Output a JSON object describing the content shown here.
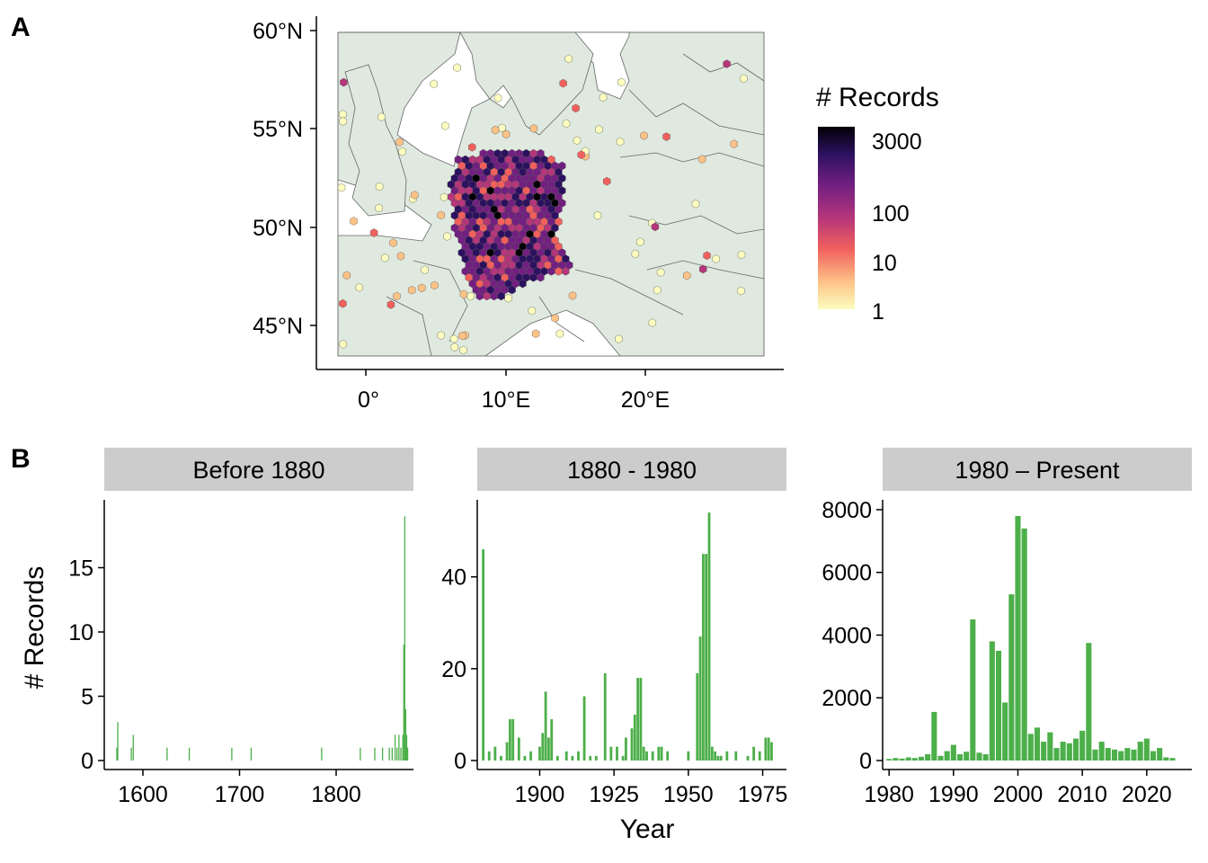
{
  "panels": {
    "a": "A",
    "b": "B"
  },
  "map": {
    "lat_ticks": [
      "45°N",
      "50°N",
      "55°N",
      "60°N"
    ],
    "lon_ticks": [
      "0°",
      "10°E",
      "20°E"
    ],
    "legend_title": "# Records",
    "legend_ticks": [
      "1",
      "10",
      "100",
      "3000"
    ],
    "land_color": "#dfe9df",
    "scale_colors": [
      "#fcfdbf",
      "#fec287",
      "#f1605d",
      "#b5367a",
      "#721f81",
      "#2d1160",
      "#000004"
    ]
  },
  "chart_data": [
    {
      "type": "bar",
      "title": "Before 1880",
      "xlabel": "",
      "ylabel": "# Records",
      "xlim": [
        1560,
        1880
      ],
      "ylim": [
        0,
        20
      ],
      "x_ticks": [
        1600,
        1700,
        1800
      ],
      "y_ticks": [
        0,
        5,
        10,
        15
      ],
      "color": "#4daf4a",
      "x": [
        1573,
        1574,
        1588,
        1590,
        1625,
        1648,
        1692,
        1712,
        1785,
        1825,
        1840,
        1848,
        1855,
        1858,
        1861,
        1863,
        1865,
        1867,
        1869,
        1870,
        1871,
        1872,
        1873,
        1874
      ],
      "values": [
        1,
        3,
        1,
        2,
        1,
        1,
        1,
        1,
        1,
        1,
        1,
        1,
        1,
        1,
        2,
        1,
        2,
        1,
        2,
        9,
        19,
        4,
        2,
        1
      ]
    },
    {
      "type": "bar",
      "title": "1880 - 1980",
      "xlabel": "Year",
      "ylabel": "",
      "xlim": [
        1879,
        1983
      ],
      "ylim": [
        0,
        56
      ],
      "x_ticks": [
        1900,
        1925,
        1950,
        1975
      ],
      "y_ticks": [
        0,
        20,
        40
      ],
      "color": "#4daf4a",
      "x": [
        1881,
        1883,
        1885,
        1887,
        1889,
        1890,
        1891,
        1893,
        1895,
        1897,
        1900,
        1901,
        1902,
        1903,
        1904,
        1906,
        1909,
        1911,
        1913,
        1915,
        1917,
        1919,
        1922,
        1924,
        1926,
        1928,
        1929,
        1931,
        1932,
        1933,
        1934,
        1935,
        1936,
        1938,
        1940,
        1941,
        1943,
        1950,
        1953,
        1954,
        1955,
        1956,
        1957,
        1958,
        1959,
        1960,
        1961,
        1963,
        1966,
        1970,
        1972,
        1974,
        1976,
        1977,
        1978
      ],
      "values": [
        46,
        2,
        3,
        1,
        4,
        9,
        9,
        5,
        1,
        2,
        3,
        6,
        15,
        5,
        9,
        1,
        2,
        1,
        2,
        14,
        1,
        1,
        19,
        3,
        3,
        1,
        5,
        7,
        10,
        18,
        18,
        3,
        2,
        2,
        3,
        3,
        2,
        2,
        19,
        27,
        45,
        45,
        54,
        3,
        2,
        1,
        1,
        2,
        2,
        1,
        3,
        2,
        5,
        5,
        4
      ]
    },
    {
      "type": "bar",
      "title": "1980 – Present",
      "xlabel": "",
      "ylabel": "",
      "xlim": [
        1979,
        2027
      ],
      "ylim": [
        0,
        8200
      ],
      "x_ticks": [
        1980,
        1990,
        2000,
        2010,
        2020
      ],
      "y_ticks": [
        0,
        2000,
        4000,
        6000,
        8000
      ],
      "color": "#4daf4a",
      "x": [
        1980,
        1981,
        1982,
        1983,
        1984,
        1985,
        1986,
        1987,
        1988,
        1989,
        1990,
        1991,
        1992,
        1993,
        1994,
        1995,
        1996,
        1997,
        1998,
        1999,
        2000,
        2001,
        2002,
        2003,
        2004,
        2005,
        2006,
        2007,
        2008,
        2009,
        2010,
        2011,
        2012,
        2013,
        2014,
        2015,
        2016,
        2017,
        2018,
        2019,
        2020,
        2021,
        2022,
        2023,
        2024
      ],
      "values": [
        50,
        80,
        60,
        100,
        80,
        120,
        200,
        1550,
        150,
        300,
        500,
        200,
        280,
        4500,
        250,
        200,
        3800,
        3500,
        1850,
        5300,
        7800,
        7400,
        850,
        1050,
        600,
        900,
        400,
        600,
        550,
        700,
        950,
        3750,
        350,
        600,
        400,
        350,
        300,
        400,
        350,
        600,
        700,
        300,
        400,
        100,
        80
      ]
    }
  ]
}
